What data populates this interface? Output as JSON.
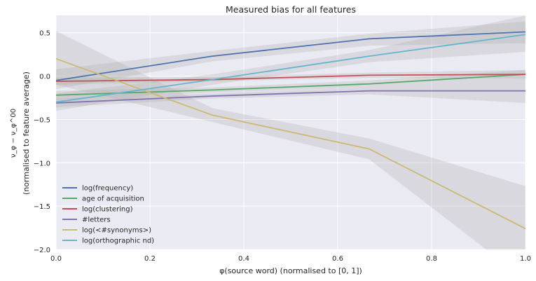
{
  "chart_data": {
    "type": "line",
    "title": "Measured bias for all features",
    "xlabel": "φ(source word) (normalised to [0, 1])",
    "ylabel_line1": "ν_φ − ν_φ^00",
    "ylabel_line2": "(normalised to feature average)",
    "xlim": [
      0.0,
      1.0
    ],
    "ylim": [
      -2.0,
      0.7
    ],
    "xticks": [
      0.0,
      0.2,
      0.4,
      0.6,
      0.8,
      1.0
    ],
    "xtick_labels": [
      "0.0",
      "0.2",
      "0.4",
      "0.6",
      "0.8",
      "1.0"
    ],
    "yticks": [
      0.5,
      0.0,
      -0.5,
      -1.0,
      -1.5,
      -2.0
    ],
    "ytick_labels": [
      "0.5",
      "0.0",
      "−0.5",
      "−1.0",
      "−1.5",
      "−2.0"
    ],
    "grid": true,
    "legend_position": "bottom-left",
    "x": [
      0.0,
      0.333,
      0.667,
      1.0
    ],
    "series": [
      {
        "name": "log(frequency)",
        "color": "#4c72b0",
        "values": [
          -0.05,
          0.23,
          0.43,
          0.51
        ],
        "ci_lower": [
          -0.15,
          0.17,
          0.35,
          0.38
        ],
        "ci_upper": [
          0.08,
          0.29,
          0.49,
          0.63
        ]
      },
      {
        "name": "age of acquisition",
        "color": "#55a868",
        "values": [
          -0.22,
          -0.16,
          -0.09,
          0.02
        ],
        "ci_lower": [
          -0.27,
          -0.19,
          -0.13,
          -0.04
        ],
        "ci_upper": [
          -0.17,
          -0.13,
          -0.05,
          0.07
        ]
      },
      {
        "name": "log(clustering)",
        "color": "#c44e52",
        "values": [
          -0.06,
          -0.04,
          0.01,
          0.02
        ],
        "ci_lower": [
          -0.1,
          -0.06,
          -0.02,
          -0.03
        ],
        "ci_upper": [
          -0.02,
          -0.01,
          0.04,
          0.07
        ]
      },
      {
        "name": "#letters",
        "color": "#8172b2",
        "values": [
          -0.31,
          -0.23,
          -0.17,
          -0.17
        ],
        "ci_lower": [
          -0.36,
          -0.26,
          -0.21,
          -0.31
        ],
        "ci_upper": [
          -0.26,
          -0.2,
          -0.13,
          -0.04
        ]
      },
      {
        "name": "log(<#synonyms>)",
        "color": "#ccb974",
        "values": [
          0.2,
          -0.45,
          -0.84,
          -1.76
        ],
        "ci_lower": [
          -0.1,
          -0.53,
          -0.96,
          -2.35
        ],
        "ci_upper": [
          0.52,
          -0.37,
          -0.72,
          -1.27
        ]
      },
      {
        "name": "log(orthographic nd)",
        "color": "#64b5cd",
        "values": [
          -0.3,
          -0.04,
          0.23,
          0.48
        ],
        "ci_lower": [
          -0.4,
          -0.1,
          0.16,
          0.28
        ],
        "ci_upper": [
          -0.2,
          0.02,
          0.3,
          0.7
        ]
      }
    ]
  }
}
